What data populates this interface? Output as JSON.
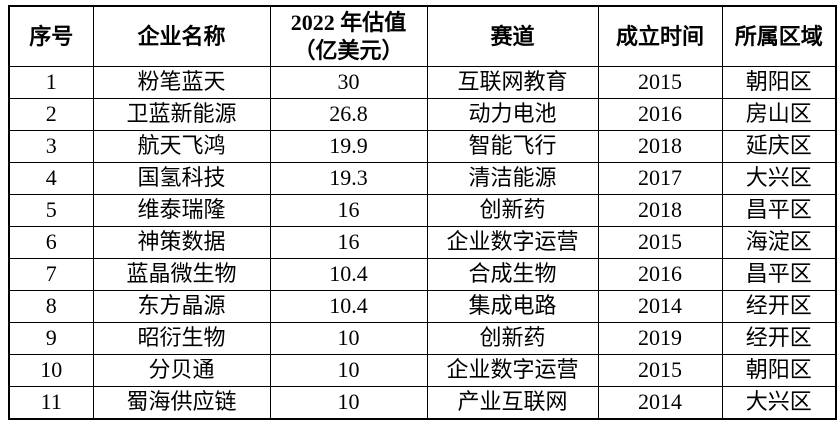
{
  "table": {
    "columns": [
      {
        "label": "序号"
      },
      {
        "label": "企业名称"
      },
      {
        "label": "2022 年估值\n（亿美元）"
      },
      {
        "label": "赛道"
      },
      {
        "label": "成立时间"
      },
      {
        "label": "所属区域"
      }
    ],
    "rows": [
      [
        "1",
        "粉笔蓝天",
        "30",
        "互联网教育",
        "2015",
        "朝阳区"
      ],
      [
        "2",
        "卫蓝新能源",
        "26.8",
        "动力电池",
        "2016",
        "房山区"
      ],
      [
        "3",
        "航天飞鸿",
        "19.9",
        "智能飞行",
        "2018",
        "延庆区"
      ],
      [
        "4",
        "国氢科技",
        "19.3",
        "清洁能源",
        "2017",
        "大兴区"
      ],
      [
        "5",
        "维泰瑞隆",
        "16",
        "创新药",
        "2018",
        "昌平区"
      ],
      [
        "6",
        "神策数据",
        "16",
        "企业数字运营",
        "2015",
        "海淀区"
      ],
      [
        "7",
        "蓝晶微生物",
        "10.4",
        "合成生物",
        "2016",
        "昌平区"
      ],
      [
        "8",
        "东方晶源",
        "10.4",
        "集成电路",
        "2014",
        "经开区"
      ],
      [
        "9",
        "昭衍生物",
        "10",
        "创新药",
        "2019",
        "经开区"
      ],
      [
        "10",
        "分贝通",
        "10",
        "企业数字运营",
        "2015",
        "朝阳区"
      ],
      [
        "11",
        "蜀海供应链",
        "10",
        "产业互联网",
        "2014",
        "大兴区"
      ]
    ],
    "border_color": "#000000",
    "text_color": "#000000",
    "background_color": "#ffffff"
  }
}
